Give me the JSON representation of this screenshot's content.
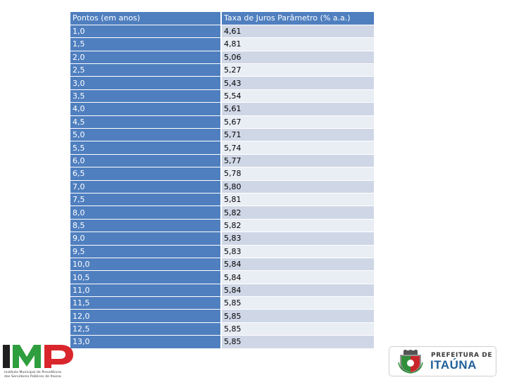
{
  "table": {
    "headers": [
      "Pontos (em anos)",
      "Taxa de Juros Parâmetro (% a.a.)"
    ],
    "rows": [
      [
        "1,0",
        "4,61"
      ],
      [
        "1,5",
        "4,81"
      ],
      [
        "2,0",
        "5,06"
      ],
      [
        "2,5",
        "5,27"
      ],
      [
        "3,0",
        "5,43"
      ],
      [
        "3,5",
        "5,54"
      ],
      [
        "4,0",
        "5,61"
      ],
      [
        "4,5",
        "5,67"
      ],
      [
        "5,0",
        "5,71"
      ],
      [
        "5,5",
        "5,74"
      ],
      [
        "6,0",
        "5,77"
      ],
      [
        "6,5",
        "5,78"
      ],
      [
        "7,0",
        "5,80"
      ],
      [
        "7,5",
        "5,81"
      ],
      [
        "8,0",
        "5,82"
      ],
      [
        "8,5",
        "5,82"
      ],
      [
        "9,0",
        "5,83"
      ],
      [
        "9,5",
        "5,83"
      ],
      [
        "10,0",
        "5,84"
      ],
      [
        "10,5",
        "5,84"
      ],
      [
        "11,0",
        "5,84"
      ],
      [
        "11,5",
        "5,85"
      ],
      [
        "12,0",
        "5,85"
      ],
      [
        "12,5",
        "5,85"
      ],
      [
        "13,0",
        "5,85"
      ]
    ]
  },
  "logos": {
    "imp": {
      "letters": "IMP",
      "caption_line1": "Instituto Municipal de Previdência",
      "caption_line2": "dos Servidores Públicos de Itaúna",
      "colors": {
        "dark": "#1f1f1f",
        "green": "#2e9e3e",
        "red": "#d9262c"
      }
    },
    "prefeitura": {
      "top_text": "PREFEITURA DE",
      "main_text": "ITAÚNA",
      "colors": {
        "blue": "#1f5f99",
        "crest_green": "#2f8f3a",
        "crest_red": "#c8262b"
      }
    }
  },
  "colors": {
    "header_blue": "#4f7fbf",
    "row_odd": "#cfd7e6",
    "row_even": "#e9edf4"
  }
}
